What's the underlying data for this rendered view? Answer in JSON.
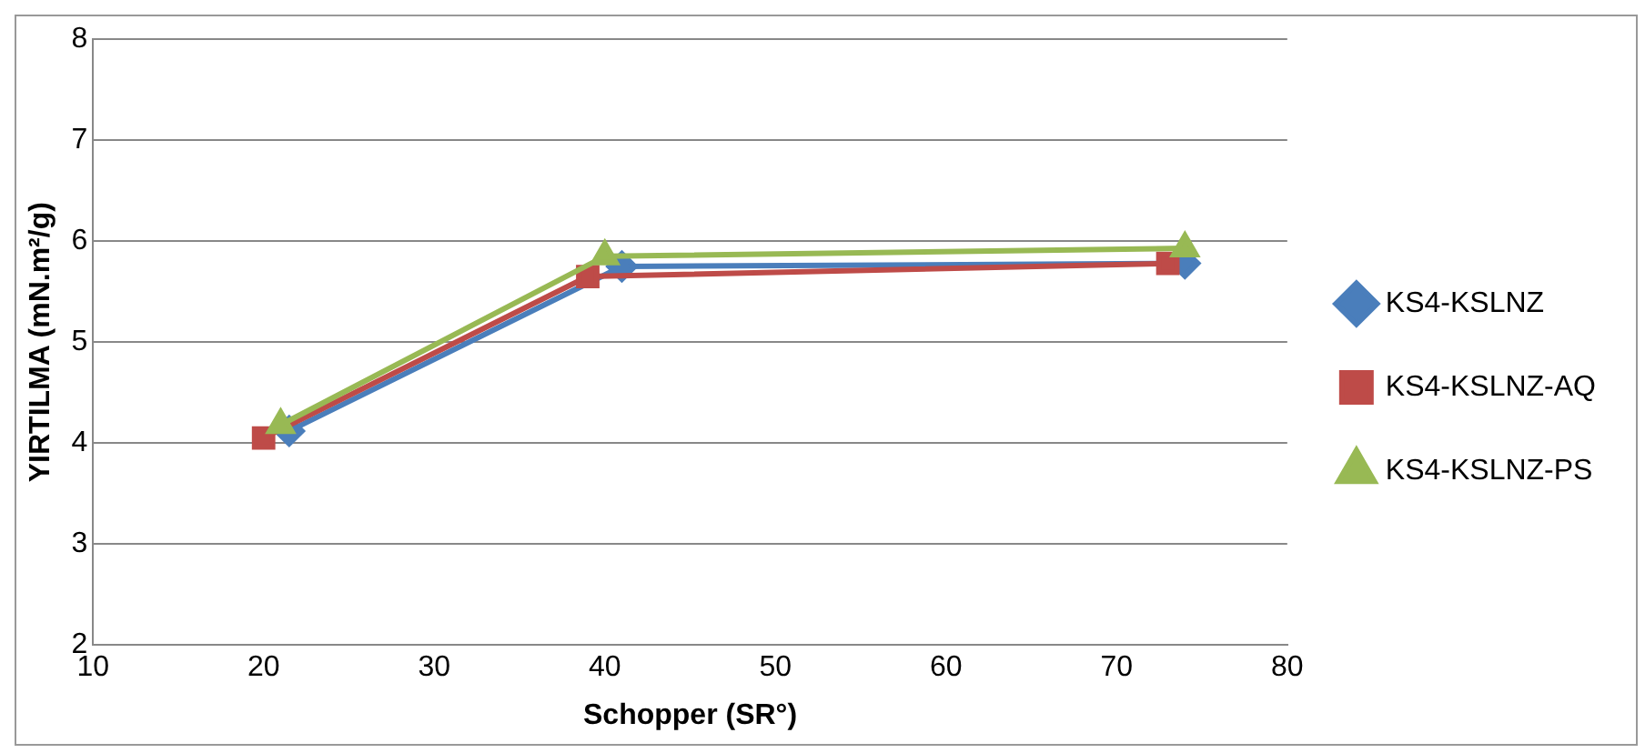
{
  "chart_data": {
    "type": "line",
    "xlabel": "Schopper (SR°)",
    "ylabel": "YIRTILMA (mN.m²/g)",
    "xlim": [
      10,
      80
    ],
    "xticks": [
      10,
      20,
      30,
      40,
      50,
      60,
      70,
      80
    ],
    "ylim": [
      2,
      8
    ],
    "yticks": [
      2,
      3,
      4,
      5,
      6,
      7,
      8
    ],
    "grid": "y",
    "legend": "right",
    "line_style": "solid",
    "series": [
      {
        "name": "KS4-KSLNZ",
        "color": "#4a7ebb",
        "marker": "diamond",
        "x": [
          21.5,
          41,
          74
        ],
        "values": [
          4.12,
          5.75,
          5.78
        ]
      },
      {
        "name": "KS4-KSLNZ-AQ",
        "color": "#be4b48",
        "marker": "square",
        "x": [
          20,
          39,
          73
        ],
        "values": [
          4.05,
          5.65,
          5.78
        ]
      },
      {
        "name": "KS4-KSLNZ-PS",
        "color": "#98b954",
        "marker": "triangle",
        "x": [
          21,
          40,
          74
        ],
        "values": [
          4.18,
          5.85,
          5.93
        ]
      }
    ]
  }
}
